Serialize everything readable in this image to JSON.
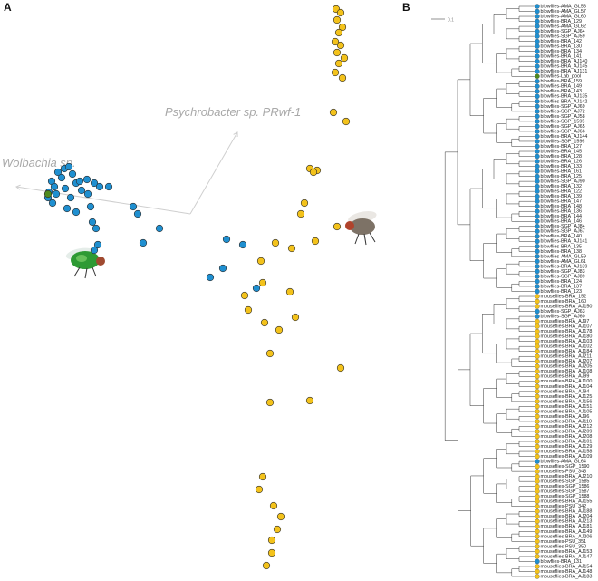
{
  "chart_data": [
    {
      "type": "scatter",
      "panel_label": "A",
      "xlim": [
        0,
        440
      ],
      "ylim": [
        0,
        640
      ],
      "origin": {
        "x": 210,
        "y": 404
      },
      "arrows": [
        {
          "label": "Wolbachia sp.",
          "x": 18,
          "y": 434
        },
        {
          "label": "Psychrobacter sp. PRwf-1",
          "x": 262,
          "y": 494
        }
      ],
      "points": [
        {
          "x": 71,
          "y": 454,
          "color": "#1f8fd0"
        },
        {
          "x": 76,
          "y": 456,
          "color": "#1f8fd0"
        },
        {
          "x": 64,
          "y": 450,
          "color": "#1f8fd0"
        },
        {
          "x": 80,
          "y": 448,
          "color": "#1f8fd0"
        },
        {
          "x": 68,
          "y": 444,
          "color": "#1f8fd0"
        },
        {
          "x": 57,
          "y": 440,
          "color": "#1f8fd0"
        },
        {
          "x": 60,
          "y": 434,
          "color": "#1f8fd0"
        },
        {
          "x": 54,
          "y": 428,
          "color": "#1f8fd0"
        },
        {
          "x": 53,
          "y": 422,
          "color": "#1f8fd0"
        },
        {
          "x": 58,
          "y": 416,
          "color": "#1f8fd0"
        },
        {
          "x": 62,
          "y": 426,
          "color": "#1f8fd0"
        },
        {
          "x": 72,
          "y": 432,
          "color": "#1f8fd0"
        },
        {
          "x": 84,
          "y": 438,
          "color": "#1f8fd0"
        },
        {
          "x": 90,
          "y": 430,
          "color": "#1f8fd0"
        },
        {
          "x": 78,
          "y": 422,
          "color": "#1f8fd0"
        },
        {
          "x": 88,
          "y": 440,
          "color": "#1f8fd0"
        },
        {
          "x": 96,
          "y": 442,
          "color": "#1f8fd0"
        },
        {
          "x": 104,
          "y": 438,
          "color": "#1f8fd0"
        },
        {
          "x": 110,
          "y": 434,
          "color": "#1f8fd0"
        },
        {
          "x": 120,
          "y": 434,
          "color": "#1f8fd0"
        },
        {
          "x": 97,
          "y": 426,
          "color": "#1f8fd0"
        },
        {
          "x": 74,
          "y": 410,
          "color": "#1f8fd0"
        },
        {
          "x": 84,
          "y": 406,
          "color": "#1f8fd0"
        },
        {
          "x": 100,
          "y": 412,
          "color": "#1f8fd0"
        },
        {
          "x": 102,
          "y": 395,
          "color": "#1f8fd0"
        },
        {
          "x": 106,
          "y": 388,
          "color": "#1f8fd0"
        },
        {
          "x": 108,
          "y": 370,
          "color": "#1f8fd0"
        },
        {
          "x": 104,
          "y": 364,
          "color": "#1f8fd0"
        },
        {
          "x": 147,
          "y": 412,
          "color": "#1f8fd0"
        },
        {
          "x": 152,
          "y": 404,
          "color": "#1f8fd0"
        },
        {
          "x": 176,
          "y": 388,
          "color": "#1f8fd0"
        },
        {
          "x": 158,
          "y": 372,
          "color": "#1f8fd0"
        },
        {
          "x": 250,
          "y": 376,
          "color": "#1f8fd0"
        },
        {
          "x": 268,
          "y": 370,
          "color": "#1f8fd0"
        },
        {
          "x": 246,
          "y": 344,
          "color": "#1f8fd0"
        },
        {
          "x": 232,
          "y": 334,
          "color": "#1f8fd0"
        },
        {
          "x": 283,
          "y": 322,
          "color": "#1f8fd0"
        },
        {
          "x": 53,
          "y": 426,
          "color": "#4f8a1e"
        },
        {
          "x": 371,
          "y": 630,
          "color": "#f3c21b"
        },
        {
          "x": 376,
          "y": 626,
          "color": "#f3c21b"
        },
        {
          "x": 372,
          "y": 618,
          "color": "#f3c21b"
        },
        {
          "x": 378,
          "y": 610,
          "color": "#f3c21b"
        },
        {
          "x": 374,
          "y": 604,
          "color": "#f3c21b"
        },
        {
          "x": 370,
          "y": 594,
          "color": "#f3c21b"
        },
        {
          "x": 376,
          "y": 590,
          "color": "#f3c21b"
        },
        {
          "x": 372,
          "y": 582,
          "color": "#f3c21b"
        },
        {
          "x": 380,
          "y": 576,
          "color": "#f3c21b"
        },
        {
          "x": 374,
          "y": 570,
          "color": "#f3c21b"
        },
        {
          "x": 370,
          "y": 560,
          "color": "#f3c21b"
        },
        {
          "x": 378,
          "y": 554,
          "color": "#f3c21b"
        },
        {
          "x": 368,
          "y": 516,
          "color": "#f3c21b"
        },
        {
          "x": 382,
          "y": 506,
          "color": "#f3c21b"
        },
        {
          "x": 342,
          "y": 454,
          "color": "#f3c21b"
        },
        {
          "x": 350,
          "y": 452,
          "color": "#f3c21b"
        },
        {
          "x": 346,
          "y": 450,
          "color": "#f3c21b"
        },
        {
          "x": 336,
          "y": 416,
          "color": "#f3c21b"
        },
        {
          "x": 332,
          "y": 404,
          "color": "#f3c21b"
        },
        {
          "x": 372,
          "y": 390,
          "color": "#f3c21b"
        },
        {
          "x": 304,
          "y": 372,
          "color": "#f3c21b"
        },
        {
          "x": 322,
          "y": 366,
          "color": "#f3c21b"
        },
        {
          "x": 348,
          "y": 374,
          "color": "#f3c21b"
        },
        {
          "x": 288,
          "y": 352,
          "color": "#f3c21b"
        },
        {
          "x": 290,
          "y": 328,
          "color": "#f3c21b"
        },
        {
          "x": 270,
          "y": 314,
          "color": "#f3c21b"
        },
        {
          "x": 274,
          "y": 298,
          "color": "#f3c21b"
        },
        {
          "x": 320,
          "y": 318,
          "color": "#f3c21b"
        },
        {
          "x": 292,
          "y": 284,
          "color": "#f3c21b"
        },
        {
          "x": 308,
          "y": 276,
          "color": "#f3c21b"
        },
        {
          "x": 326,
          "y": 290,
          "color": "#f3c21b"
        },
        {
          "x": 298,
          "y": 250,
          "color": "#f3c21b"
        },
        {
          "x": 376,
          "y": 234,
          "color": "#f3c21b"
        },
        {
          "x": 342,
          "y": 198,
          "color": "#f3c21b"
        },
        {
          "x": 298,
          "y": 196,
          "color": "#f3c21b"
        },
        {
          "x": 290,
          "y": 114,
          "color": "#f3c21b"
        },
        {
          "x": 286,
          "y": 100,
          "color": "#f3c21b"
        },
        {
          "x": 302,
          "y": 82,
          "color": "#f3c21b"
        },
        {
          "x": 306,
          "y": 56,
          "color": "#f3c21b"
        },
        {
          "x": 300,
          "y": 44,
          "color": "#f3c21b"
        },
        {
          "x": 300,
          "y": 30,
          "color": "#f3c21b"
        },
        {
          "x": 310,
          "y": 70,
          "color": "#f3c21b"
        },
        {
          "x": 294,
          "y": 16,
          "color": "#f3c21b"
        }
      ]
    },
    {
      "type": "tree",
      "panel_label": "B",
      "scale_bar": 0.1,
      "leaves": [
        {
          "label": "blowflies-AMA_GL58",
          "color": "#1f8fd0"
        },
        {
          "label": "blowflies-AMA_GL57",
          "color": "#1f8fd0"
        },
        {
          "label": "blowflies-AMA_GL60",
          "color": "#1f8fd0"
        },
        {
          "label": "blowflies-BRA_129",
          "color": "#1f8fd0"
        },
        {
          "label": "blowflies-AMA_GL62",
          "color": "#1f8fd0"
        },
        {
          "label": "blowflies-SGP_AJ64",
          "color": "#1f8fd0"
        },
        {
          "label": "blowflies-SGP_AJ59",
          "color": "#1f8fd0"
        },
        {
          "label": "blowflies-BRA_142",
          "color": "#1f8fd0"
        },
        {
          "label": "blowflies-BRA_130",
          "color": "#1f8fd0"
        },
        {
          "label": "blowflies-BRA_134",
          "color": "#1f8fd0"
        },
        {
          "label": "blowflies-BRA_141",
          "color": "#1f8fd0"
        },
        {
          "label": "blowflies-BRA_AJ140",
          "color": "#1f8fd0"
        },
        {
          "label": "blowflies-BRA_AJ145",
          "color": "#1f8fd0"
        },
        {
          "label": "blowflies-BRA_AJ131",
          "color": "#1f8fd0"
        },
        {
          "label": "blowflies-Lab_pool",
          "color": "#4f8a1e"
        },
        {
          "label": "blowflies-BRA_159",
          "color": "#1f8fd0"
        },
        {
          "label": "blowflies-BRA_149",
          "color": "#1f8fd0"
        },
        {
          "label": "blowflies-BRA_143",
          "color": "#1f8fd0"
        },
        {
          "label": "blowflies-BRA_AJ135",
          "color": "#1f8fd0"
        },
        {
          "label": "blowflies-BRA_AJ142",
          "color": "#1f8fd0"
        },
        {
          "label": "blowflies-SGP_AJ69",
          "color": "#1f8fd0"
        },
        {
          "label": "blowflies-SGP_AJ72",
          "color": "#1f8fd0"
        },
        {
          "label": "blowflies-SGP_AJ58",
          "color": "#1f8fd0"
        },
        {
          "label": "blowflies-SGP_1595",
          "color": "#1f8fd0"
        },
        {
          "label": "blowflies-SGP_AJ65",
          "color": "#1f8fd0"
        },
        {
          "label": "blowflies-SGP_AJ66",
          "color": "#1f8fd0"
        },
        {
          "label": "blowflies-BRA_AJ144",
          "color": "#1f8fd0"
        },
        {
          "label": "blowflies-SGP_1596",
          "color": "#1f8fd0"
        },
        {
          "label": "blowflies-BRA_127",
          "color": "#1f8fd0"
        },
        {
          "label": "blowflies-BRA_145",
          "color": "#1f8fd0"
        },
        {
          "label": "blowflies-BRA_128",
          "color": "#1f8fd0"
        },
        {
          "label": "blowflies-BRA_126",
          "color": "#1f8fd0"
        },
        {
          "label": "blowflies-BRA_133",
          "color": "#1f8fd0"
        },
        {
          "label": "blowflies-BRA_161",
          "color": "#1f8fd0"
        },
        {
          "label": "blowflies-BRA_125",
          "color": "#1f8fd0"
        },
        {
          "label": "blowflies-SGP_AJ90",
          "color": "#1f8fd0"
        },
        {
          "label": "blowflies-BRA_132",
          "color": "#1f8fd0"
        },
        {
          "label": "blowflies-BRA_122",
          "color": "#1f8fd0"
        },
        {
          "label": "blowflies-BRA_139",
          "color": "#1f8fd0"
        },
        {
          "label": "blowflies-BRA_147",
          "color": "#1f8fd0"
        },
        {
          "label": "blowflies-BRA_148",
          "color": "#1f8fd0"
        },
        {
          "label": "blowflies-BRA_136",
          "color": "#1f8fd0"
        },
        {
          "label": "blowflies-BRA_144",
          "color": "#1f8fd0"
        },
        {
          "label": "blowflies-BRA_146",
          "color": "#1f8fd0"
        },
        {
          "label": "blowflies-SGP_AJ84",
          "color": "#1f8fd0"
        },
        {
          "label": "blowflies-SGP_AJ67",
          "color": "#1f8fd0"
        },
        {
          "label": "blowflies-BRA_140",
          "color": "#1f8fd0"
        },
        {
          "label": "blowflies-BRA_AJ141",
          "color": "#1f8fd0"
        },
        {
          "label": "blowflies-BRA_135",
          "color": "#1f8fd0"
        },
        {
          "label": "blowflies-BRA_138",
          "color": "#1f8fd0"
        },
        {
          "label": "blowflies-AMA_GL59",
          "color": "#1f8fd0"
        },
        {
          "label": "blowflies-AMA_GL61",
          "color": "#1f8fd0"
        },
        {
          "label": "blowflies-BRA_AJ139",
          "color": "#1f8fd0"
        },
        {
          "label": "blowflies-SGP_AJ83",
          "color": "#1f8fd0"
        },
        {
          "label": "blowflies-SGP_AJ89",
          "color": "#1f8fd0"
        },
        {
          "label": "blowflies-BRA_124",
          "color": "#1f8fd0"
        },
        {
          "label": "blowflies-BRA_137",
          "color": "#1f8fd0"
        },
        {
          "label": "blowflies-BRA_123",
          "color": "#1f8fd0"
        },
        {
          "label": "mouseflies-BRA_152",
          "color": "#f3c21b"
        },
        {
          "label": "mouseflies-BRA_160",
          "color": "#f3c21b"
        },
        {
          "label": "mouseflies-BRA_AJ150",
          "color": "#f3c21b"
        },
        {
          "label": "blowflies-SGP_AJ63",
          "color": "#1f8fd0"
        },
        {
          "label": "blowflies-SGP_AJ60",
          "color": "#1f8fd0"
        },
        {
          "label": "mouseflies-BRA_AJ97",
          "color": "#f3c21b"
        },
        {
          "label": "mouseflies-BRA_AJ107",
          "color": "#f3c21b"
        },
        {
          "label": "mouseflies-BRA_AJ178",
          "color": "#f3c21b"
        },
        {
          "label": "mouseflies-BRA_AJ180",
          "color": "#f3c21b"
        },
        {
          "label": "mouseflies-BRA_AJ103",
          "color": "#f3c21b"
        },
        {
          "label": "mouseflies-BRA_AJ102",
          "color": "#f3c21b"
        },
        {
          "label": "mouseflies-BRA_AJ184",
          "color": "#f3c21b"
        },
        {
          "label": "mouseflies-BRA_AJ211",
          "color": "#f3c21b"
        },
        {
          "label": "mouseflies-BRA_AJ207",
          "color": "#f3c21b"
        },
        {
          "label": "mouseflies-BRA_AJ205",
          "color": "#f3c21b"
        },
        {
          "label": "mouseflies-BRA_AJ108",
          "color": "#f3c21b"
        },
        {
          "label": "mouseflies-BRA_AJ99",
          "color": "#f3c21b"
        },
        {
          "label": "mouseflies-BRA_AJ100",
          "color": "#f3c21b"
        },
        {
          "label": "mouseflies-BRA_AJ104",
          "color": "#f3c21b"
        },
        {
          "label": "mouseflies-BRA_AJ94",
          "color": "#f3c21b"
        },
        {
          "label": "mouseflies-BRA_AJ125",
          "color": "#f3c21b"
        },
        {
          "label": "mouseflies-BRA_AJ156",
          "color": "#f3c21b"
        },
        {
          "label": "mouseflies-BRA_AJ151",
          "color": "#f3c21b"
        },
        {
          "label": "mouseflies-BRA_AJ105",
          "color": "#f3c21b"
        },
        {
          "label": "mouseflies-BRA_AJ96",
          "color": "#f3c21b"
        },
        {
          "label": "mouseflies-BRA_AJ110",
          "color": "#f3c21b"
        },
        {
          "label": "mouseflies-BRA_AJ212",
          "color": "#f3c21b"
        },
        {
          "label": "mouseflies-BRA_AJ209",
          "color": "#f3c21b"
        },
        {
          "label": "mouseflies-BRA_AJ208",
          "color": "#f3c21b"
        },
        {
          "label": "mouseflies-BRA_AJ101",
          "color": "#f3c21b"
        },
        {
          "label": "mouseflies-BRA_AJ129",
          "color": "#f3c21b"
        },
        {
          "label": "mouseflies-BRA_AJ158",
          "color": "#f3c21b"
        },
        {
          "label": "mouseflies-BRA_AJ109",
          "color": "#f3c21b"
        },
        {
          "label": "blowflies-AMA_GL64",
          "color": "#1f8fd0"
        },
        {
          "label": "mouseflies-SGP_1590",
          "color": "#f3c21b"
        },
        {
          "label": "mouseflies-PSU_343",
          "color": "#f3c21b"
        },
        {
          "label": "mouseflies-BRA_AJ210",
          "color": "#f3c21b"
        },
        {
          "label": "mouseflies-SGP_1585",
          "color": "#f3c21b"
        },
        {
          "label": "mouseflies-SGP_1586",
          "color": "#f3c21b"
        },
        {
          "label": "mouseflies-SGP_1587",
          "color": "#f3c21b"
        },
        {
          "label": "mouseflies-SGP_1588",
          "color": "#f3c21b"
        },
        {
          "label": "mouseflies-BRA_AJ155",
          "color": "#f3c21b"
        },
        {
          "label": "mouseflies-PSU_342",
          "color": "#f3c21b"
        },
        {
          "label": "mouseflies-BRA_AJ188",
          "color": "#f3c21b"
        },
        {
          "label": "mouseflies-BRA_AJ204",
          "color": "#f3c21b"
        },
        {
          "label": "mouseflies-BRA_AJ213",
          "color": "#f3c21b"
        },
        {
          "label": "mouseflies-BRA_AJ181",
          "color": "#f3c21b"
        },
        {
          "label": "mouseflies-BRA_AJ149",
          "color": "#f3c21b"
        },
        {
          "label": "mouseflies-BRA_AJ206",
          "color": "#f3c21b"
        },
        {
          "label": "mouseflies-PSU_351",
          "color": "#f3c21b"
        },
        {
          "label": "mouseflies-PSU_350",
          "color": "#f3c21b"
        },
        {
          "label": "mouseflies-BRA_AJ153",
          "color": "#f3c21b"
        },
        {
          "label": "mouseflies-BRA_AJ147",
          "color": "#f3c21b"
        },
        {
          "label": "blowflies-BRA_131",
          "color": "#1f8fd0"
        },
        {
          "label": "mouseflies-BRA_AJ154",
          "color": "#f3c21b"
        },
        {
          "label": "mouseflies-BRA_AJ148",
          "color": "#f3c21b"
        },
        {
          "label": "mouseflies-BRA_AJ183",
          "color": "#f3c21b"
        }
      ]
    }
  ]
}
